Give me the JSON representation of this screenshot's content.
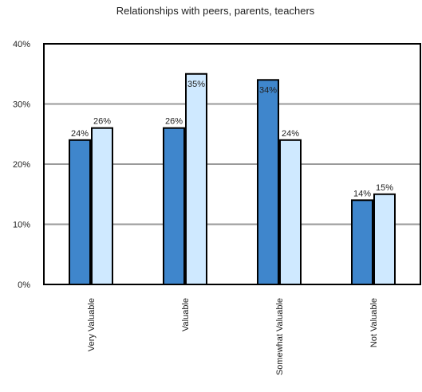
{
  "chart_data": {
    "type": "bar",
    "title": "Relationships with peers, parents, teachers",
    "xlabel": "",
    "ylabel": "",
    "categories": [
      "Very Valuable",
      "Valuable",
      "Somewhat Valuable",
      "Not Valuable"
    ],
    "series": [
      {
        "values": [
          24,
          26,
          34,
          14
        ],
        "labels": [
          "24%",
          "26%",
          "34%",
          "14%"
        ],
        "color": "#3f86cc"
      },
      {
        "values": [
          26,
          35,
          24,
          15
        ],
        "labels": [
          "26%",
          "35%",
          "24%",
          "15%"
        ],
        "color": "#cfe9ff"
      }
    ],
    "ylim": [
      0,
      40
    ],
    "yticks": [
      0,
      10,
      20,
      30,
      40
    ],
    "ytick_labels": [
      "0%",
      "10%",
      "20%",
      "30%",
      "40%"
    ],
    "grid": true,
    "legend": "none"
  }
}
